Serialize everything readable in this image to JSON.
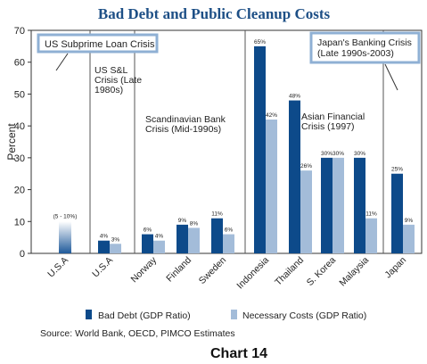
{
  "chart_data": {
    "type": "bar",
    "title": "Bad Debt and Public Cleanup Costs",
    "ylabel": "Percent",
    "xlabel": "",
    "ylim": [
      0,
      70
    ],
    "yticks": [
      0,
      10,
      20,
      30,
      40,
      50,
      60,
      70
    ],
    "grid": false,
    "legend_position": "bottom",
    "categories": [
      "U.S.A",
      "U.S.A",
      "Norway",
      "Finland",
      "Sweden",
      "Indonesia",
      "Thailand",
      "S. Korea",
      "Malaysia",
      "Japan"
    ],
    "series": [
      {
        "name": "Bad Debt (GDP Ratio)",
        "color": "#0d4a8a",
        "values": [
          null,
          4,
          6,
          9,
          11,
          65,
          48,
          30,
          30,
          25
        ],
        "labels": [
          "",
          "4%",
          "6%",
          "9%",
          "11%",
          "65%",
          "48%",
          "30%",
          "30%",
          "25%"
        ]
      },
      {
        "name": "Necessary Costs (GDP Ratio)",
        "color": "#a3bcd9",
        "values": [
          null,
          3,
          4,
          8,
          6,
          42,
          26,
          30,
          11,
          9
        ],
        "labels": [
          "",
          "3%",
          "4%",
          "8%",
          "6%",
          "42%",
          "26%",
          "30%",
          "11%",
          "9%"
        ]
      }
    ],
    "range_bar": {
      "category_index": 0,
      "low": 5,
      "high": 10,
      "label": "(5 - 10%)"
    },
    "annotations": [
      {
        "lines": [
          "US Subprime Loan Crisis"
        ],
        "boxed": true
      },
      {
        "lines": [
          "US S&L",
          "Crisis (Late",
          "1980s)"
        ],
        "boxed": false
      },
      {
        "lines": [
          "Scandinavian Bank",
          "Crisis (Mid-1990s)"
        ],
        "boxed": false
      },
      {
        "lines": [
          "Asian Financial",
          "Crisis (1997)"
        ],
        "boxed": false
      },
      {
        "lines": [
          "Japan's Banking Crisis",
          "(Late 1990s-2003)"
        ],
        "boxed": true
      }
    ],
    "source": "Source: World Bank, OECD, PIMCO Estimates",
    "caption": "Chart 14"
  }
}
